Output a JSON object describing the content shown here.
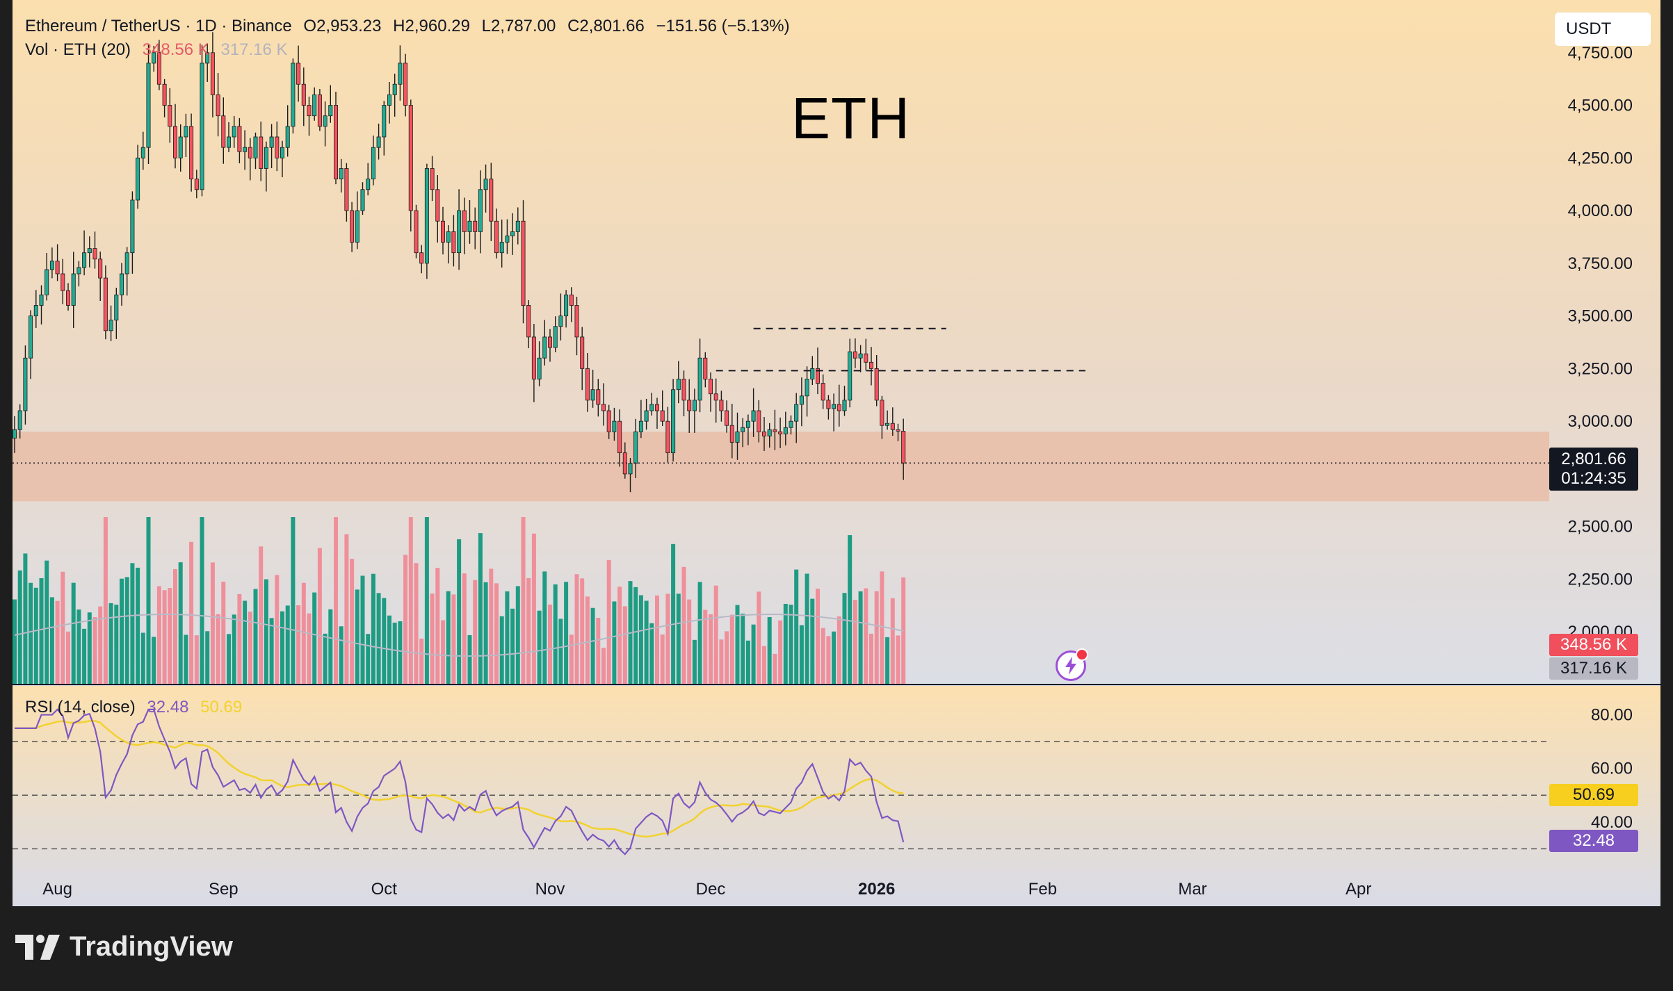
{
  "colors": {
    "up": "#22ab94",
    "down": "#f7525f",
    "vol_up": "#1e9c83",
    "vol_down": "#ef8f9a",
    "rsi": "#7e57c2",
    "rsi_ma": "#f2d22e",
    "zone": "#e8b9a2",
    "bg_top": "#fbdfae",
    "bg_bottom": "#dcdee6"
  },
  "header": {
    "symbol": "Ethereum / TetherUS · 1D · Binance",
    "open": "O2,953.23",
    "high": "H2,960.29",
    "low": "L2,787.00",
    "close": "C2,801.66",
    "change": "−151.56 (−5.13%)",
    "vol_label": "Vol · ETH (20)",
    "vol_value": "348.56 K",
    "vol_ma_value": "317.16 K",
    "rsi_label": "RSI (14, close)",
    "rsi_value": "32.48",
    "rsi_ma_value": "50.69"
  },
  "currency": "USDT",
  "annotation": "ETH",
  "price_tag": {
    "price": "2,801.66",
    "countdown": "01:24:35"
  },
  "volume_tags": {
    "current": "348.56 K",
    "ma": "317.16 K"
  },
  "rsi_tags": {
    "rsi": "32.48",
    "ma": "50.69"
  },
  "brand": "TradingView",
  "icons": {
    "bolt": "lightning-icon",
    "logo": "tradingview-logo-icon"
  },
  "chart_data": {
    "type": "candlestick",
    "title": "Ethereum / TetherUS · 1D · Binance",
    "price_axis": {
      "range": [
        1750,
        5000
      ],
      "ticks": [
        2000,
        2250,
        2500,
        2750,
        3000,
        3250,
        3500,
        3750,
        4000,
        4250,
        4500,
        4750
      ],
      "tick_labels": [
        "2,000.00",
        "2,250.00",
        "2,500.00",
        "",
        "3,000.00",
        "3,250.00",
        "3,500.00",
        "3,750.00",
        "4,000.00",
        "4,250.00",
        "4,500.00",
        "4,750.00"
      ]
    },
    "x_axis": {
      "labels": [
        "Aug",
        "Sep",
        "Oct",
        "Nov",
        "Dec",
        "2026",
        "Feb",
        "Mar",
        "Apr"
      ],
      "label_days": [
        8,
        39,
        69,
        100,
        130,
        161,
        192,
        220,
        251
      ],
      "bold": [
        "2026"
      ]
    },
    "daily_close": [
      2960,
      3050,
      3300,
      3500,
      3550,
      3600,
      3720,
      3760,
      3700,
      3620,
      3550,
      3700,
      3730,
      3800,
      3820,
      3770,
      3680,
      3430,
      3480,
      3600,
      3700,
      3800,
      4050,
      4250,
      4300,
      4700,
      4750,
      4600,
      4500,
      4400,
      4250,
      4350,
      4400,
      4150,
      4100,
      4700,
      4750,
      4550,
      4450,
      4300,
      4350,
      4400,
      4280,
      4300,
      4250,
      4350,
      4200,
      4300,
      4350,
      4250,
      4300,
      4400,
      4700,
      4600,
      4500,
      4450,
      4550,
      4400,
      4450,
      4500,
      4150,
      4200,
      4000,
      3850,
      4000,
      4100,
      4150,
      4300,
      4350,
      4500,
      4550,
      4600,
      4700,
      4500,
      4000,
      3800,
      3750,
      4200,
      4100,
      3950,
      3850,
      3900,
      3800,
      4000,
      3900,
      3950,
      3900,
      4100,
      4150,
      3950,
      3800,
      3850,
      3880,
      3900,
      3950,
      3550,
      3400,
      3200,
      3300,
      3400,
      3350,
      3450,
      3500,
      3600,
      3550,
      3400,
      3250,
      3100,
      3150,
      3080,
      3050,
      2950,
      3000,
      2850,
      2750,
      2800,
      2950,
      3000,
      3050,
      3080,
      3050,
      3000,
      2850,
      3150,
      3200,
      3100,
      3050,
      3100,
      3300,
      3200,
      3130,
      3100,
      3050,
      2980,
      2900,
      2950,
      2970,
      3000,
      3050,
      2950,
      2930,
      2960,
      2950,
      2940,
      2970,
      3000,
      3080,
      3120,
      3200,
      3250,
      3180,
      3100,
      3060,
      3080,
      3050,
      3100,
      3330,
      3300,
      3320,
      3280,
      3250,
      3100,
      2980,
      2990,
      2960,
      2953,
      2801.66
    ],
    "last_price": 2801.66,
    "support_zone": [
      2620,
      2950
    ],
    "resistance_levels": [
      {
        "price": 3440,
        "from_day": 138,
        "to_day": 174
      },
      {
        "price": 3240,
        "from_day": 131,
        "to_day": 200
      }
    ],
    "volume": {
      "label": "Vol · ETH (20)",
      "current": 348560,
      "ma": 317160
    },
    "rsi": {
      "label": "RSI (14, close)",
      "range": [
        20,
        90
      ],
      "ticks": [
        40,
        60,
        80
      ],
      "bands": [
        30,
        50,
        70
      ],
      "value": 32.48,
      "ma_value": 50.69
    }
  }
}
